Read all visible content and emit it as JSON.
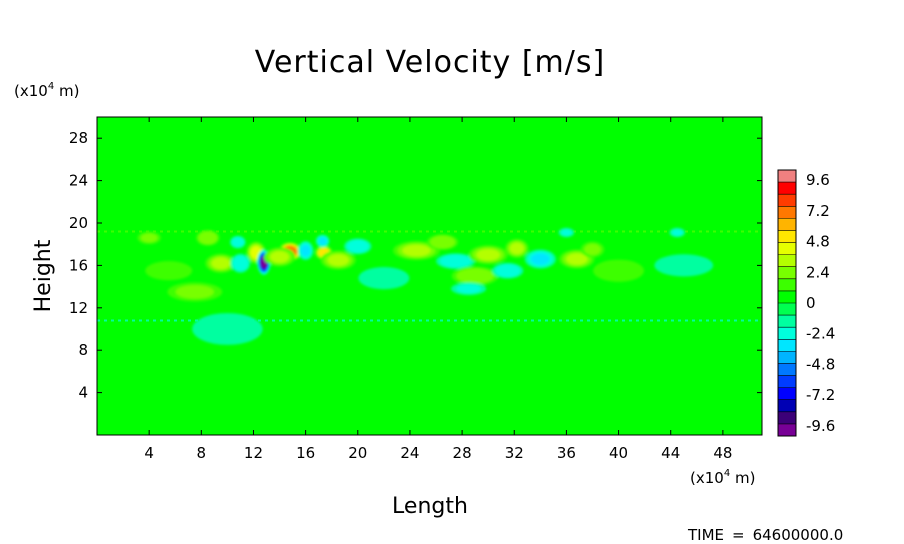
{
  "chart_data": {
    "type": "heatmap",
    "title": "Vertical Velocity [m/s]",
    "xlabel": "Length",
    "ylabel": "Height",
    "x_unit": "(x10",
    "x_unit_exp": "4",
    "x_unit_tail": " m)",
    "y_unit": "(x10",
    "y_unit_exp": "4",
    "y_unit_tail": " m)",
    "xlim": [
      0,
      51
    ],
    "ylim": [
      0,
      30
    ],
    "x_ticks": [
      4,
      8,
      12,
      16,
      20,
      24,
      28,
      32,
      36,
      40,
      44,
      48
    ],
    "y_ticks": [
      4,
      8,
      12,
      16,
      20,
      24,
      28
    ],
    "x_tick_labels": [
      "4",
      "8",
      "12",
      "16",
      "20",
      "24",
      "28",
      "32",
      "36",
      "40",
      "44",
      "48"
    ],
    "y_tick_labels": [
      "4",
      "8",
      "12",
      "16",
      "20",
      "24",
      "28"
    ],
    "background_value": 0.5,
    "colorbar": {
      "range": [
        -10.4,
        10.4
      ],
      "label_values": [
        9.6,
        7.2,
        4.8,
        2.4,
        0,
        -2.4,
        -4.8,
        -7.2,
        -9.6
      ],
      "labels": [
        "9.6",
        "7.2",
        "4.8",
        "2.4",
        "0",
        "-2.4",
        "-4.8",
        "-7.2",
        "-9.6"
      ],
      "colors": [
        "#f08080",
        "#ff0000",
        "#ff3c00",
        "#ff7800",
        "#ffb400",
        "#ffe600",
        "#e6ff00",
        "#b4ff00",
        "#78ff00",
        "#3cff00",
        "#00ff00",
        "#00ff50",
        "#00ffa0",
        "#00ffdc",
        "#00e6ff",
        "#00b4ff",
        "#0078ff",
        "#003cff",
        "#0000ff",
        "#0000b4",
        "#3c0078",
        "#780096"
      ]
    },
    "features": [
      {
        "x": 12.2,
        "y": 17.2,
        "value": 4.2,
        "sx": 0.5,
        "sy": 0.7
      },
      {
        "x": 12.8,
        "y": 16.3,
        "value": -9.6,
        "sx": 0.35,
        "sy": 0.8
      },
      {
        "x": 14.8,
        "y": 17.3,
        "value": 7.5,
        "sx": 0.6,
        "sy": 0.6
      },
      {
        "x": 14.0,
        "y": 16.8,
        "value": 3.0,
        "sx": 0.8,
        "sy": 0.6
      },
      {
        "x": 16.0,
        "y": 17.4,
        "value": -3.2,
        "sx": 0.4,
        "sy": 0.6
      },
      {
        "x": 17.4,
        "y": 17.2,
        "value": 5.6,
        "sx": 0.45,
        "sy": 0.45
      },
      {
        "x": 17.3,
        "y": 18.3,
        "value": -3.0,
        "sx": 0.35,
        "sy": 0.4
      },
      {
        "x": 9.5,
        "y": 16.2,
        "value": 3.2,
        "sx": 0.8,
        "sy": 0.6
      },
      {
        "x": 10.8,
        "y": 18.2,
        "value": -2.8,
        "sx": 0.4,
        "sy": 0.4
      },
      {
        "x": 11.0,
        "y": 16.2,
        "value": -2.6,
        "sx": 0.5,
        "sy": 0.6
      },
      {
        "x": 8.5,
        "y": 18.6,
        "value": 2.8,
        "sx": 0.6,
        "sy": 0.5
      },
      {
        "x": 18.5,
        "y": 16.5,
        "value": 3.1,
        "sx": 0.9,
        "sy": 0.6
      },
      {
        "x": 20.0,
        "y": 17.8,
        "value": -2.8,
        "sx": 0.7,
        "sy": 0.5
      },
      {
        "x": 24.5,
        "y": 17.4,
        "value": 3.6,
        "sx": 1.2,
        "sy": 0.6
      },
      {
        "x": 26.5,
        "y": 18.2,
        "value": 2.6,
        "sx": 0.8,
        "sy": 0.5
      },
      {
        "x": 27.5,
        "y": 16.4,
        "value": -2.6,
        "sx": 1.0,
        "sy": 0.5
      },
      {
        "x": 29.0,
        "y": 15.0,
        "value": 2.8,
        "sx": 1.2,
        "sy": 0.6
      },
      {
        "x": 30.0,
        "y": 17.0,
        "value": 3.4,
        "sx": 1.0,
        "sy": 0.6
      },
      {
        "x": 31.5,
        "y": 15.5,
        "value": -2.6,
        "sx": 0.8,
        "sy": 0.5
      },
      {
        "x": 32.2,
        "y": 17.6,
        "value": 3.0,
        "sx": 0.6,
        "sy": 0.6
      },
      {
        "x": 34.0,
        "y": 16.6,
        "value": -3.0,
        "sx": 0.8,
        "sy": 0.6
      },
      {
        "x": 36.8,
        "y": 16.6,
        "value": 3.6,
        "sx": 0.9,
        "sy": 0.6
      },
      {
        "x": 38.0,
        "y": 17.5,
        "value": 2.4,
        "sx": 0.6,
        "sy": 0.5
      },
      {
        "x": 28.5,
        "y": 13.8,
        "value": -2.2,
        "sx": 0.9,
        "sy": 0.4
      },
      {
        "x": 7.5,
        "y": 13.5,
        "value": 2.2,
        "sx": 1.4,
        "sy": 0.6
      },
      {
        "x": 5.5,
        "y": 15.5,
        "value": 1.8,
        "sx": 1.2,
        "sy": 0.6
      },
      {
        "x": 22.0,
        "y": 14.8,
        "value": -1.6,
        "sx": 1.3,
        "sy": 0.7
      },
      {
        "x": 40.0,
        "y": 15.5,
        "value": 1.8,
        "sx": 1.3,
        "sy": 0.7
      },
      {
        "x": 45.0,
        "y": 16.0,
        "value": -1.4,
        "sx": 1.5,
        "sy": 0.7
      },
      {
        "x": 10.0,
        "y": 10.0,
        "value": -1.6,
        "sx": 1.8,
        "sy": 1.0
      },
      {
        "x": 44.5,
        "y": 19.1,
        "value": -2.2,
        "sx": 0.4,
        "sy": 0.3
      },
      {
        "x": 36.0,
        "y": 19.1,
        "value": -2.4,
        "sx": 0.4,
        "sy": 0.3
      },
      {
        "x": 4.0,
        "y": 18.6,
        "value": 2.0,
        "sx": 0.6,
        "sy": 0.4
      }
    ],
    "band_levels_y": [
      19.2,
      10.8
    ],
    "time_label": "TIME",
    "time_value": "64600000.0"
  }
}
